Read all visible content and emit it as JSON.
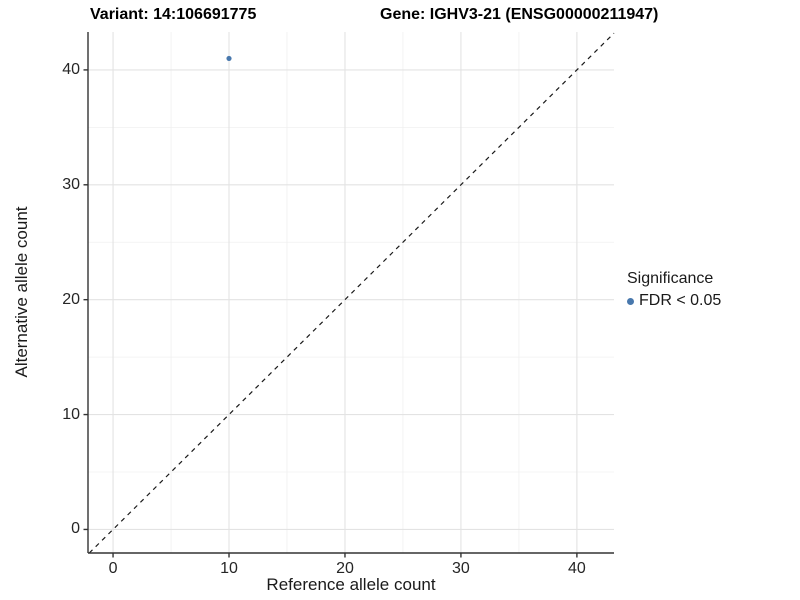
{
  "titles": {
    "variant": "Variant: 14:106691775",
    "gene": "Gene: IGHV3-21 (ENSG00000211947)"
  },
  "chart_data": {
    "type": "scatter",
    "xlabel": "Reference allele count",
    "ylabel": "Alternative allele count",
    "xlim": [
      -2.16,
      43.2
    ],
    "ylim": [
      -2.05,
      43.3
    ],
    "x_ticks": [
      0,
      10,
      20,
      30,
      40
    ],
    "y_ticks": [
      0,
      10,
      20,
      30,
      40
    ],
    "x_minor_ticks": [
      5,
      15,
      25,
      35
    ],
    "y_minor_ticks": [
      5,
      15,
      25,
      35
    ],
    "grid": true,
    "legend_position": "right",
    "points": [
      {
        "x": 10,
        "y": 41,
        "series": "FDR < 0.05"
      }
    ],
    "reference_line": {
      "type": "identity",
      "slope": 1,
      "intercept": 0,
      "style": "dashed"
    },
    "colors": {
      "point": "#4878ad",
      "grid_major": "#e3e3e3",
      "grid_minor": "#f0f0f0",
      "axis_line": "#333333",
      "dashed_line": "#1a1a1a"
    }
  },
  "legend": {
    "title": "Significance",
    "items": [
      {
        "label": "FDR < 0.05",
        "color": "#4878ad"
      }
    ]
  }
}
